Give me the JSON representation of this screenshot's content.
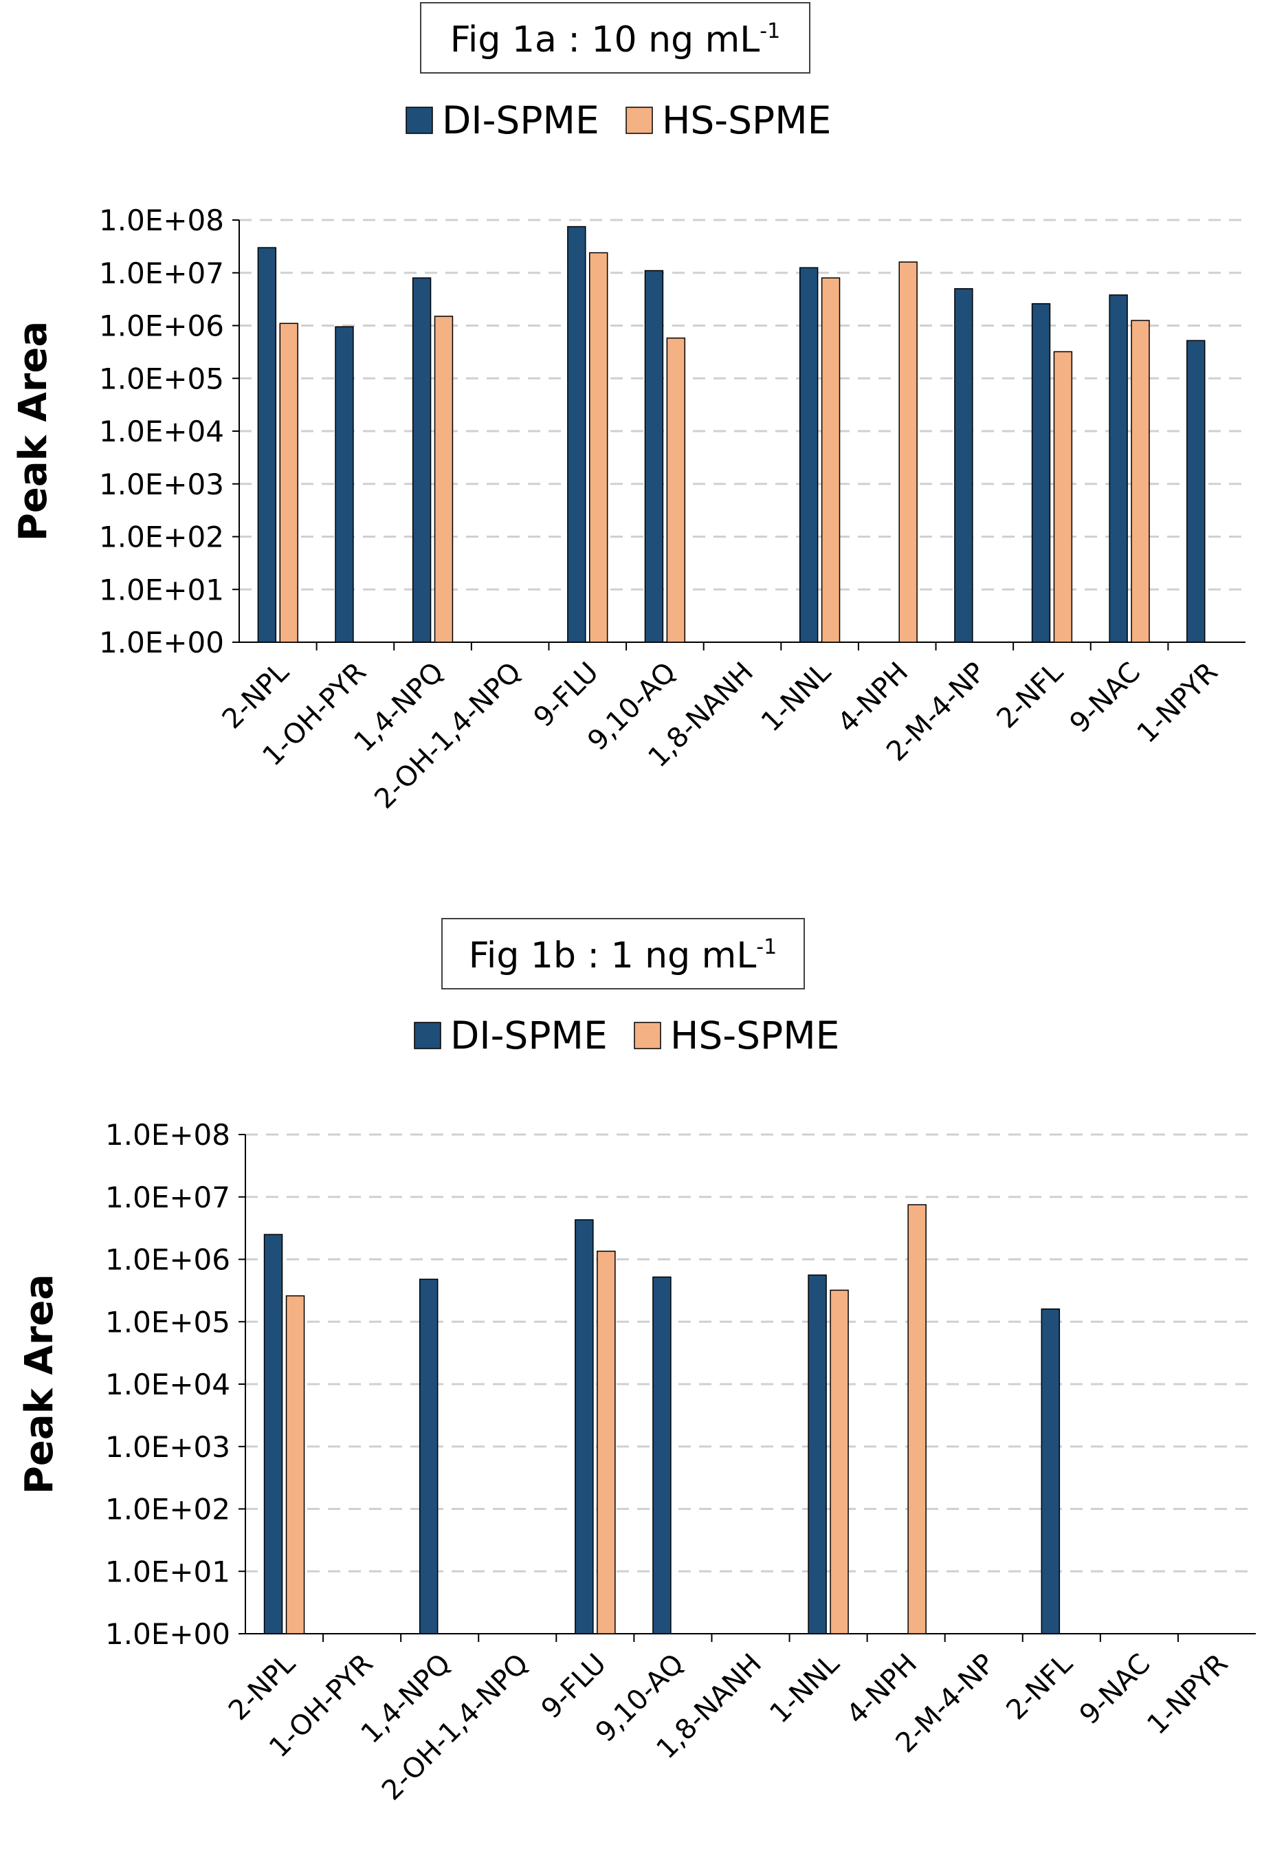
{
  "chart_data": [
    {
      "type": "bar",
      "title": "Fig 1a : 10 ng mL",
      "title_superscript": "-1",
      "xlabel": "",
      "ylabel": "Peak Area",
      "yscale": "log",
      "ylim": [
        1,
        100000000
      ],
      "grid": true,
      "legend_position": "top-center",
      "y_tick_labels": [
        "1.0E+00",
        "1.0E+01",
        "1.0E+02",
        "1.0E+03",
        "1.0E+04",
        "1.0E+05",
        "1.0E+06",
        "1.0E+07",
        "1.0E+08"
      ],
      "categories": [
        "2-NPL",
        "1-OH-PYR",
        "1,4-NPQ",
        "2-OH-1,4-NPQ",
        "9-FLU",
        "9,10-AQ",
        "1,8-NANH",
        "1-NNL",
        "4-NPH",
        "2-M-4-NP",
        "2-NFL",
        "9-NAC",
        "1-NPYR"
      ],
      "series": [
        {
          "name": "DI-SPME",
          "color": "#1f4e79",
          "values": [
            30000000,
            950000,
            8000000,
            null,
            75000000,
            11000000,
            null,
            12500000,
            null,
            5000000,
            2600000,
            3800000,
            520000
          ]
        },
        {
          "name": "HS-SPME",
          "color": "#f4b183",
          "values": [
            1100000,
            null,
            1500000,
            null,
            24000000,
            580000,
            null,
            8000000,
            16000000,
            null,
            320000,
            1250000,
            null
          ]
        }
      ]
    },
    {
      "type": "bar",
      "title": "Fig 1b : 1 ng mL",
      "title_superscript": "-1",
      "xlabel": "",
      "ylabel": "Peak Area",
      "yscale": "log",
      "ylim": [
        1,
        100000000
      ],
      "grid": true,
      "legend_position": "top-center",
      "y_tick_labels": [
        "1.0E+00",
        "1.0E+01",
        "1.0E+02",
        "1.0E+03",
        "1.0E+04",
        "1.0E+05",
        "1.0E+06",
        "1.0E+07",
        "1.0E+08"
      ],
      "categories": [
        "2-NPL",
        "1-OH-PYR",
        "1,4-NPQ",
        "2-OH-1,4-NPQ",
        "9-FLU",
        "9,10-AQ",
        "1,8-NANH",
        "1-NNL",
        "4-NPH",
        "2-M-4-NP",
        "2-NFL",
        "9-NAC",
        "1-NPYR"
      ],
      "series": [
        {
          "name": "DI-SPME",
          "color": "#1f4e79",
          "values": [
            2500000,
            null,
            480000,
            null,
            4300000,
            520000,
            null,
            560000,
            null,
            null,
            160000,
            null,
            null
          ]
        },
        {
          "name": "HS-SPME",
          "color": "#f4b183",
          "values": [
            260000,
            null,
            null,
            null,
            1350000,
            null,
            null,
            320000,
            7500000,
            null,
            null,
            null,
            null
          ]
        }
      ]
    }
  ]
}
